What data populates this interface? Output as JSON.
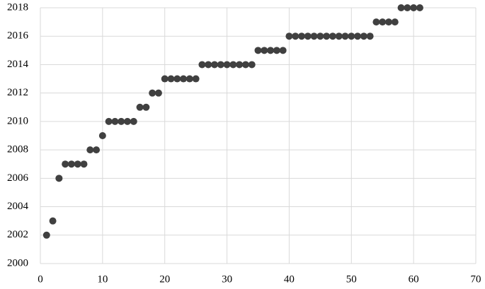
{
  "chart_data": {
    "type": "scatter",
    "x": [
      1,
      2,
      3,
      4,
      5,
      6,
      7,
      8,
      9,
      10,
      11,
      12,
      13,
      14,
      15,
      16,
      17,
      18,
      19,
      20,
      21,
      22,
      23,
      24,
      25,
      26,
      27,
      28,
      29,
      30,
      31,
      32,
      33,
      34,
      35,
      36,
      37,
      38,
      39,
      40,
      41,
      42,
      43,
      44,
      45,
      46,
      47,
      48,
      49,
      50,
      51,
      52,
      53,
      54,
      55,
      56,
      57,
      58,
      59,
      60,
      61
    ],
    "values": [
      2002,
      2003,
      2006,
      2007,
      2007,
      2007,
      2007,
      2008,
      2008,
      2009,
      2010,
      2010,
      2010,
      2010,
      2010,
      2011,
      2011,
      2012,
      2012,
      2013,
      2013,
      2013,
      2013,
      2013,
      2013,
      2014,
      2014,
      2014,
      2014,
      2014,
      2014,
      2014,
      2014,
      2014,
      2015,
      2015,
      2015,
      2015,
      2015,
      2016,
      2016,
      2016,
      2016,
      2016,
      2016,
      2016,
      2016,
      2016,
      2016,
      2016,
      2016,
      2016,
      2016,
      2017,
      2017,
      2017,
      2017,
      2018,
      2018,
      2018,
      2018
    ],
    "color": "#404040",
    "xlim": [
      0,
      70
    ],
    "xticks": [
      0,
      10,
      20,
      30,
      40,
      50,
      60,
      70
    ],
    "ylim": [
      2000,
      2018
    ],
    "yticks": [
      2000,
      2002,
      2004,
      2006,
      2008,
      2010,
      2012,
      2014,
      2016,
      2018
    ],
    "grid": true
  }
}
